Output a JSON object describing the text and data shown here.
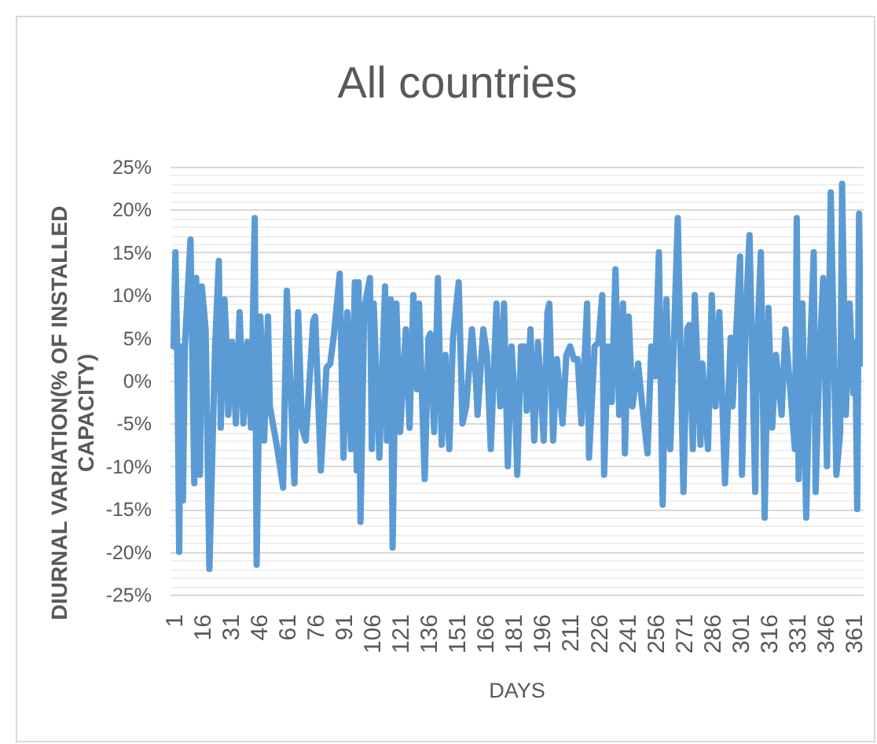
{
  "chart_data": {
    "type": "line",
    "title": "All countries",
    "xlabel": "DAYS",
    "ylabel": "DIURNAL VARIATION(% OF INSTALLED CAPACITY)",
    "x": [
      1,
      2,
      3,
      4,
      5,
      6,
      7,
      10,
      12,
      13,
      15,
      16,
      18,
      20,
      23,
      25,
      26,
      28,
      29,
      30,
      32,
      34,
      36,
      38,
      40,
      42,
      44,
      45,
      47,
      49,
      51,
      52,
      56,
      59,
      61,
      62,
      65,
      67,
      69,
      71,
      75,
      76,
      79,
      82,
      84,
      86,
      89,
      91,
      93,
      95,
      97,
      98,
      99,
      100,
      102,
      105,
      106,
      107,
      110,
      113,
      114,
      116,
      117,
      119,
      121,
      124,
      126,
      128,
      130,
      131,
      134,
      136,
      137,
      139,
      141,
      143,
      145,
      147,
      149,
      152,
      154,
      156,
      159,
      161,
      162,
      165,
      167,
      169,
      172,
      174,
      176,
      178,
      180,
      182,
      183,
      185,
      187,
      188,
      190,
      192,
      194,
      197,
      199,
      200,
      202,
      204,
      207,
      209,
      211,
      213,
      215,
      217,
      220,
      221,
      224,
      226,
      228,
      229,
      231,
      233,
      235,
      237,
      239,
      240,
      242,
      244,
      247,
      249,
      252,
      254,
      256,
      258,
      260,
      262,
      264,
      266,
      268,
      271,
      273,
      274,
      276,
      277,
      280,
      281,
      284,
      286,
      288,
      290,
      293,
      296,
      297,
      300,
      301,
      302,
      304,
      306,
      309,
      310,
      312,
      314,
      316,
      318,
      320,
      323,
      325,
      327,
      330,
      331,
      332,
      334,
      336,
      338,
      340,
      341,
      343,
      345,
      347,
      349,
      352,
      354,
      355,
      357,
      359,
      361,
      362,
      363,
      364,
      365
    ],
    "series": [
      {
        "color": "#5b9bd5",
        "values": [
          4,
          15,
          3,
          -20,
          4,
          -14,
          4,
          16.5,
          -12,
          12,
          -11,
          11,
          6,
          -22,
          4,
          14,
          -5.5,
          9.5,
          4.5,
          -4,
          4.5,
          -5,
          8,
          -5,
          4.5,
          -5.5,
          19,
          -21.5,
          7.5,
          -7,
          7.5,
          -3,
          -8,
          -12.5,
          10.5,
          4.5,
          -12,
          8,
          -5.5,
          -7,
          7,
          7.5,
          -10.5,
          1.5,
          2,
          5.5,
          12.5,
          -9,
          8,
          -8,
          11.5,
          -10.5,
          11.5,
          -16.5,
          8.5,
          12,
          -8,
          9,
          -9,
          11,
          -7,
          9.5,
          -19.5,
          9,
          -6,
          6,
          -5.5,
          10,
          -1,
          9,
          -11.5,
          5,
          5.5,
          -6,
          12,
          -7.5,
          3,
          -8,
          5,
          11.5,
          -5,
          -3,
          6,
          0.5,
          -4,
          6,
          3,
          -8,
          9,
          -3,
          9,
          -10,
          4,
          -3.5,
          -11,
          4,
          4,
          -3.5,
          6,
          -7,
          4.5,
          -7,
          8,
          9,
          -7,
          2.5,
          -5,
          3,
          4,
          2.5,
          2.5,
          -5,
          9,
          -9,
          4,
          4.5,
          10,
          -11,
          4,
          -2.5,
          13,
          -4,
          9,
          -8.5,
          7.5,
          -3,
          2,
          -2.5,
          -8.5,
          4,
          0.5,
          15,
          -14.5,
          9.5,
          -8,
          5,
          19,
          -13,
          6,
          6.5,
          -8,
          10,
          -7.5,
          2,
          -8,
          10,
          -3,
          8,
          -12,
          5,
          -3,
          10.5,
          14.5,
          -11,
          7.5,
          17,
          -13,
          4.5,
          15,
          -16,
          8.5,
          -5.5,
          3,
          -4,
          6,
          0.5,
          -8,
          19,
          -11.5,
          9,
          -16,
          3,
          15,
          -13,
          2.5,
          12,
          -10,
          22,
          -11,
          -6,
          23,
          -4,
          9,
          -1.5,
          4.5,
          -15,
          19.5,
          2
        ]
      }
    ],
    "xlim": [
      -1,
      366
    ],
    "xticks": [
      1,
      16,
      31,
      46,
      61,
      76,
      91,
      106,
      121,
      136,
      151,
      166,
      181,
      196,
      211,
      226,
      241,
      256,
      271,
      286,
      301,
      316,
      331,
      346,
      361
    ],
    "ylim": [
      -25,
      25
    ],
    "yticks": [
      {
        "value": -25,
        "label": "-25%"
      },
      {
        "value": -24,
        "label": null
      },
      {
        "value": -23,
        "label": null
      },
      {
        "value": -22,
        "label": null
      },
      {
        "value": -21,
        "label": null
      },
      {
        "value": -20,
        "label": "-20%"
      },
      {
        "value": -19,
        "label": null
      },
      {
        "value": -18,
        "label": null
      },
      {
        "value": -17,
        "label": null
      },
      {
        "value": -16,
        "label": null
      },
      {
        "value": -15,
        "label": "-15%"
      },
      {
        "value": -14,
        "label": null
      },
      {
        "value": -13,
        "label": null
      },
      {
        "value": -12,
        "label": null
      },
      {
        "value": -11,
        "label": null
      },
      {
        "value": -10,
        "label": "-10%"
      },
      {
        "value": -9,
        "label": null
      },
      {
        "value": -8,
        "label": null
      },
      {
        "value": -7,
        "label": null
      },
      {
        "value": -6,
        "label": null
      },
      {
        "value": -5,
        "label": "-5%"
      },
      {
        "value": -4,
        "label": null
      },
      {
        "value": -3,
        "label": null
      },
      {
        "value": -2,
        "label": null
      },
      {
        "value": -1,
        "label": null
      },
      {
        "value": 0,
        "label": "0%"
      },
      {
        "value": 1,
        "label": null
      },
      {
        "value": 2,
        "label": null
      },
      {
        "value": 3,
        "label": null
      },
      {
        "value": 4,
        "label": null
      },
      {
        "value": 5,
        "label": "5%"
      },
      {
        "value": 6,
        "label": null
      },
      {
        "value": 7,
        "label": null
      },
      {
        "value": 8,
        "label": null
      },
      {
        "value": 9,
        "label": null
      },
      {
        "value": 10,
        "label": "10%"
      },
      {
        "value": 11,
        "label": null
      },
      {
        "value": 12,
        "label": null
      },
      {
        "value": 13,
        "label": null
      },
      {
        "value": 14,
        "label": null
      },
      {
        "value": 15,
        "label": "15%"
      },
      {
        "value": 16,
        "label": null
      },
      {
        "value": 17,
        "label": null
      },
      {
        "value": 18,
        "label": null
      },
      {
        "value": 19,
        "label": null
      },
      {
        "value": 20,
        "label": "20%"
      },
      {
        "value": 21,
        "label": null
      },
      {
        "value": 22,
        "label": null
      },
      {
        "value": 23,
        "label": null
      },
      {
        "value": 24,
        "label": null
      },
      {
        "value": 25,
        "label": "25%"
      }
    ],
    "grid": "y"
  }
}
